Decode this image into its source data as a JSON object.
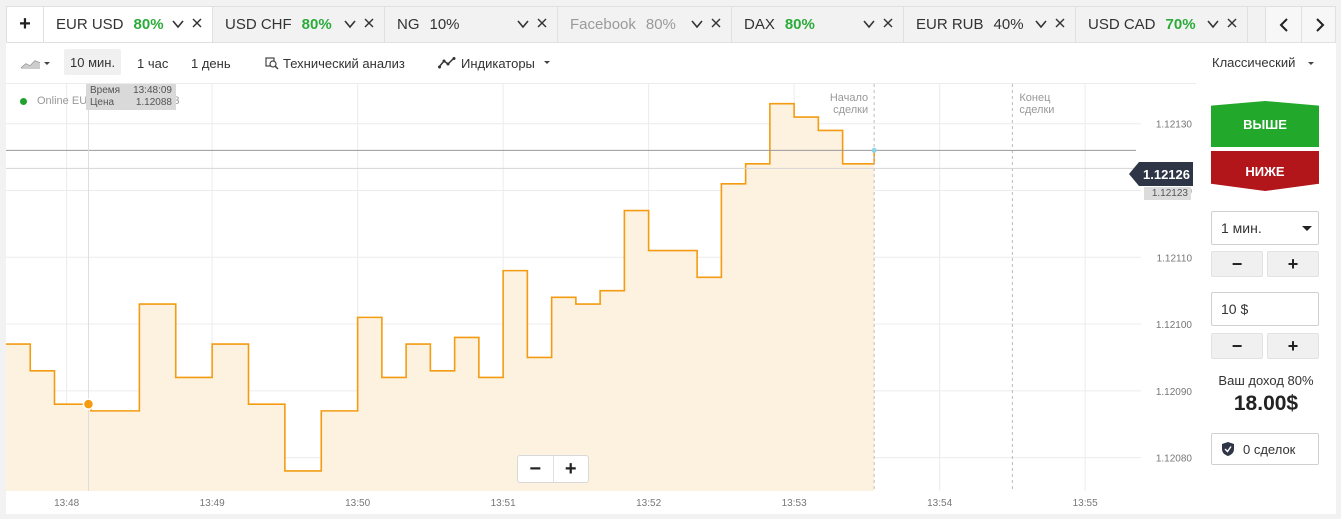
{
  "tabs": {
    "add_label": "+",
    "items": [
      {
        "name": "EUR USD",
        "pct": "80%",
        "pct_style": "green",
        "active": true,
        "disabled": false,
        "width": 169
      },
      {
        "name": "USD CHF",
        "pct": "80%",
        "pct_style": "green",
        "active": false,
        "disabled": false,
        "width": 172
      },
      {
        "name": "NG",
        "pct": "10%",
        "pct_style": "plain",
        "active": false,
        "disabled": false,
        "width": 173
      },
      {
        "name": "Facebook",
        "pct": "80%",
        "pct_style": "grey",
        "active": false,
        "disabled": true,
        "width": 174
      },
      {
        "name": "DAX",
        "pct": "80%",
        "pct_style": "green",
        "active": false,
        "disabled": false,
        "width": 172
      },
      {
        "name": "EUR RUB",
        "pct": "40%",
        "pct_style": "plain",
        "active": false,
        "disabled": false,
        "width": 172
      },
      {
        "name": "USD CAD",
        "pct": "70%",
        "pct_style": "green",
        "active": false,
        "disabled": false,
        "width": 172
      }
    ]
  },
  "toolbar": {
    "tf_10m": "10 мин.",
    "tf_1h": "1 час",
    "tf_1d": "1 день",
    "tech_analysis": "Технический анализ",
    "indicators": "Индикаторы",
    "view_mode": "Классический"
  },
  "chart": {
    "legend": "Online EURUSD 17 13:53:33",
    "tooltip": {
      "time_label": "Время",
      "time_value": "13:48:09",
      "price_label": "Цена",
      "price_value": "1.12088"
    },
    "deal_start": [
      "Начало",
      "сделки"
    ],
    "deal_end": [
      "Конец",
      "сделки"
    ],
    "current_price": "1.12126",
    "current_price_sub": "1.12123",
    "zoom_out": "−",
    "zoom_in": "+"
  },
  "chart_data": {
    "type": "area",
    "title": "",
    "xlabel": "",
    "ylabel": "",
    "x_ticks": [
      "13:48",
      "13:49",
      "13:50",
      "13:51",
      "13:52",
      "13:53",
      "13:54",
      "13:55"
    ],
    "y_ticks": [
      1.1208,
      1.1209,
      1.121,
      1.1211,
      1.1212,
      1.1213
    ],
    "ylim": [
      1.12075,
      1.12134
    ],
    "x": [
      "13:47:35",
      "13:47:45",
      "13:47:55",
      "13:48:10",
      "13:48:30",
      "13:48:45",
      "13:49:00",
      "13:49:15",
      "13:49:30",
      "13:49:45",
      "13:50:00",
      "13:50:10",
      "13:50:20",
      "13:50:30",
      "13:50:40",
      "13:50:50",
      "13:51:00",
      "13:51:10",
      "13:51:20",
      "13:51:30",
      "13:51:40",
      "13:51:50",
      "13:52:00",
      "13:52:10",
      "13:52:20",
      "13:52:30",
      "13:52:40",
      "13:52:50",
      "13:53:00",
      "13:53:10",
      "13:53:20",
      "13:53:33"
    ],
    "values": [
      1.12097,
      1.12093,
      1.12088,
      1.12087,
      1.12103,
      1.12092,
      1.12097,
      1.12088,
      1.12078,
      1.12087,
      1.12101,
      1.12092,
      1.12097,
      1.12093,
      1.12098,
      1.12092,
      1.12108,
      1.12095,
      1.12104,
      1.12103,
      1.12105,
      1.12117,
      1.12111,
      1.12111,
      1.12107,
      1.12121,
      1.12124,
      1.12133,
      1.12131,
      1.12129,
      1.12124,
      1.12126
    ],
    "series_color": "#f39c12",
    "current_price": 1.12126,
    "deal_start_time": "13:53:33",
    "deal_end_time": "13:54:30",
    "marker_time": "13:48:09",
    "marker_price": 1.12088
  },
  "side": {
    "higher": "ВЫШЕ",
    "lower": "НИЖЕ",
    "duration": "1 мин.",
    "amount": "10 $",
    "minus": "−",
    "plus": "+",
    "income_label": "Ваш доход 80%",
    "income_value": "18.00$",
    "deals": "0 сделок"
  },
  "colors": {
    "green": "#22a92b",
    "red": "#b2151a",
    "line": "#f39c12",
    "badge": "#2d3547"
  }
}
